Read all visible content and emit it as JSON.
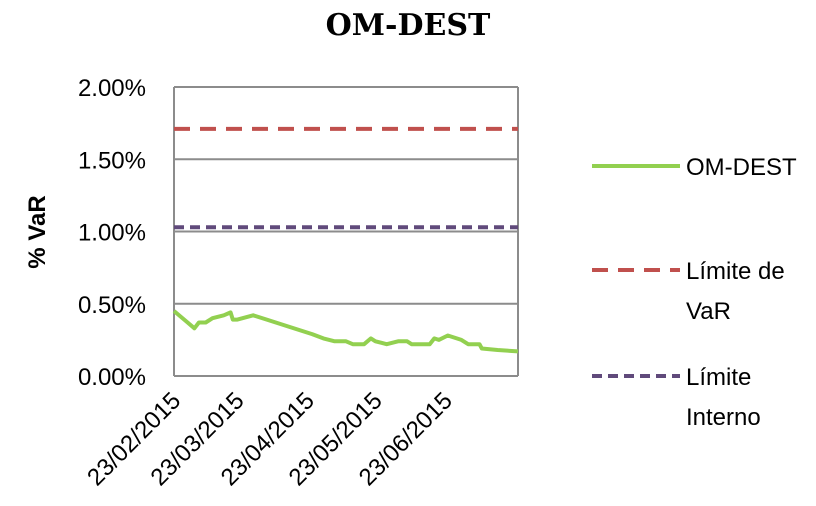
{
  "chart_data": {
    "type": "line",
    "title": "OM-DEST",
    "ylabel": "% VaR",
    "xlabel": "",
    "ylim": [
      0,
      0.02
    ],
    "yticks": [
      "0.00%",
      "0.50%",
      "1.00%",
      "1.50%",
      "2.00%"
    ],
    "xticks": [
      "23/02/2015",
      "23/03/2015",
      "23/04/2015",
      "23/05/2015",
      "23/06/2015"
    ],
    "x_range": [
      "23/02/2015",
      "25/07/2015"
    ],
    "grid": "horizontal",
    "legend_position": "right",
    "series": [
      {
        "name": "OM-DEST",
        "color": "#92D050",
        "style": "solid",
        "points": [
          [
            "23/02/2015",
            0.0045
          ],
          [
            "01/03/2015",
            0.0037
          ],
          [
            "04/03/2015",
            0.0033
          ],
          [
            "06/03/2015",
            0.0037
          ],
          [
            "09/03/2015",
            0.0037
          ],
          [
            "12/03/2015",
            0.004
          ],
          [
            "17/03/2015",
            0.0042
          ],
          [
            "20/03/2015",
            0.0044
          ],
          [
            "21/03/2015",
            0.0039
          ],
          [
            "23/03/2015",
            0.0039
          ],
          [
            "30/03/2015",
            0.0042
          ],
          [
            "05/04/2015",
            0.0039
          ],
          [
            "15/04/2015",
            0.0034
          ],
          [
            "25/04/2015",
            0.0029
          ],
          [
            "30/04/2015",
            0.0026
          ],
          [
            "05/05/2015",
            0.0024
          ],
          [
            "10/05/2015",
            0.0024
          ],
          [
            "13/05/2015",
            0.0022
          ],
          [
            "18/05/2015",
            0.0022
          ],
          [
            "21/05/2015",
            0.0026
          ],
          [
            "23/05/2015",
            0.0024
          ],
          [
            "28/05/2015",
            0.0022
          ],
          [
            "02/06/2015",
            0.0024
          ],
          [
            "06/06/2015",
            0.0024
          ],
          [
            "08/06/2015",
            0.0022
          ],
          [
            "16/06/2015",
            0.0022
          ],
          [
            "18/06/2015",
            0.0026
          ],
          [
            "20/06/2015",
            0.0025
          ],
          [
            "24/06/2015",
            0.0028
          ],
          [
            "30/06/2015",
            0.0025
          ],
          [
            "03/07/2015",
            0.0022
          ],
          [
            "08/07/2015",
            0.0022
          ],
          [
            "09/07/2015",
            0.0019
          ],
          [
            "16/07/2015",
            0.0018
          ],
          [
            "25/07/2015",
            0.0017
          ]
        ]
      },
      {
        "name": "Límite de VaR",
        "color": "#C0504D",
        "style": "dashed",
        "points": [
          [
            "23/02/2015",
            0.0171
          ],
          [
            "25/07/2015",
            0.0171
          ]
        ]
      },
      {
        "name": "Límite Interno",
        "color": "#604A7B",
        "style": "dashed",
        "points": [
          [
            "23/02/2015",
            0.0103
          ],
          [
            "25/07/2015",
            0.0103
          ]
        ]
      }
    ],
    "legend": [
      {
        "lines": [
          "OM-DEST"
        ]
      },
      {
        "lines": [
          "Límite de",
          "VaR"
        ]
      },
      {
        "lines": [
          "Límite",
          "Interno"
        ]
      }
    ]
  }
}
